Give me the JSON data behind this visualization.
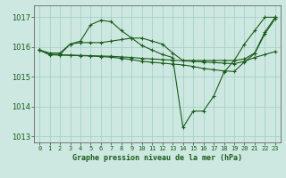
{
  "title": "Graphe pression niveau de la mer (hPa)",
  "background_color": "#cce8e0",
  "line_color": "#1a5c1a",
  "grid_color": "#a0ccc4",
  "xlim": [
    -0.5,
    23.5
  ],
  "ylim": [
    1012.8,
    1017.4
  ],
  "yticks": [
    1013,
    1014,
    1015,
    1016,
    1017
  ],
  "xticks": [
    0,
    1,
    2,
    3,
    4,
    5,
    6,
    7,
    8,
    9,
    10,
    11,
    12,
    13,
    14,
    15,
    16,
    17,
    18,
    19,
    20,
    21,
    22,
    23
  ],
  "lines": [
    {
      "x": [
        0,
        1,
        2,
        3,
        4,
        5,
        6,
        7,
        8,
        9,
        10,
        11,
        12,
        13,
        14,
        15,
        16,
        17,
        18,
        19,
        20,
        21,
        22,
        23
      ],
      "y": [
        1015.9,
        1015.8,
        1015.8,
        1016.1,
        1016.2,
        1016.75,
        1016.9,
        1016.85,
        1016.55,
        1016.3,
        1016.05,
        1015.9,
        1015.75,
        1015.65,
        1013.3,
        1013.85,
        1013.85,
        1014.35,
        1015.15,
        1015.55,
        1016.1,
        1016.55,
        1017.0,
        1017.0
      ]
    },
    {
      "x": [
        0,
        1,
        2,
        3,
        4,
        5,
        6,
        7,
        8,
        9,
        10,
        11,
        12,
        13,
        14,
        15,
        16,
        17,
        18,
        19,
        20,
        21,
        22,
        23
      ],
      "y": [
        1015.9,
        1015.75,
        1015.75,
        1016.1,
        1016.15,
        1016.15,
        1016.15,
        1016.2,
        1016.25,
        1016.3,
        1016.3,
        1016.2,
        1016.1,
        1015.8,
        1015.55,
        1015.55,
        1015.55,
        1015.55,
        1015.55,
        1015.55,
        1015.6,
        1015.8,
        1016.5,
        1017.0
      ]
    },
    {
      "x": [
        0,
        1,
        2,
        3,
        4,
        5,
        6,
        7,
        8,
        9,
        10,
        11,
        12,
        13,
        14,
        15,
        16,
        17,
        18,
        19,
        20,
        21,
        22,
        23
      ],
      "y": [
        1015.9,
        1015.75,
        1015.74,
        1015.73,
        1015.72,
        1015.71,
        1015.7,
        1015.69,
        1015.67,
        1015.65,
        1015.62,
        1015.6,
        1015.58,
        1015.56,
        1015.54,
        1015.52,
        1015.5,
        1015.48,
        1015.46,
        1015.44,
        1015.52,
        1015.65,
        1015.75,
        1015.85
      ]
    },
    {
      "x": [
        0,
        1,
        2,
        3,
        4,
        5,
        6,
        7,
        8,
        9,
        10,
        11,
        12,
        13,
        14,
        15,
        16,
        17,
        18,
        19,
        20,
        21,
        22,
        23
      ],
      "y": [
        1015.9,
        1015.74,
        1015.73,
        1015.72,
        1015.71,
        1015.7,
        1015.68,
        1015.66,
        1015.62,
        1015.58,
        1015.52,
        1015.49,
        1015.46,
        1015.43,
        1015.4,
        1015.35,
        1015.28,
        1015.24,
        1015.2,
        1015.18,
        1015.5,
        1015.78,
        1016.45,
        1016.95
      ]
    }
  ]
}
